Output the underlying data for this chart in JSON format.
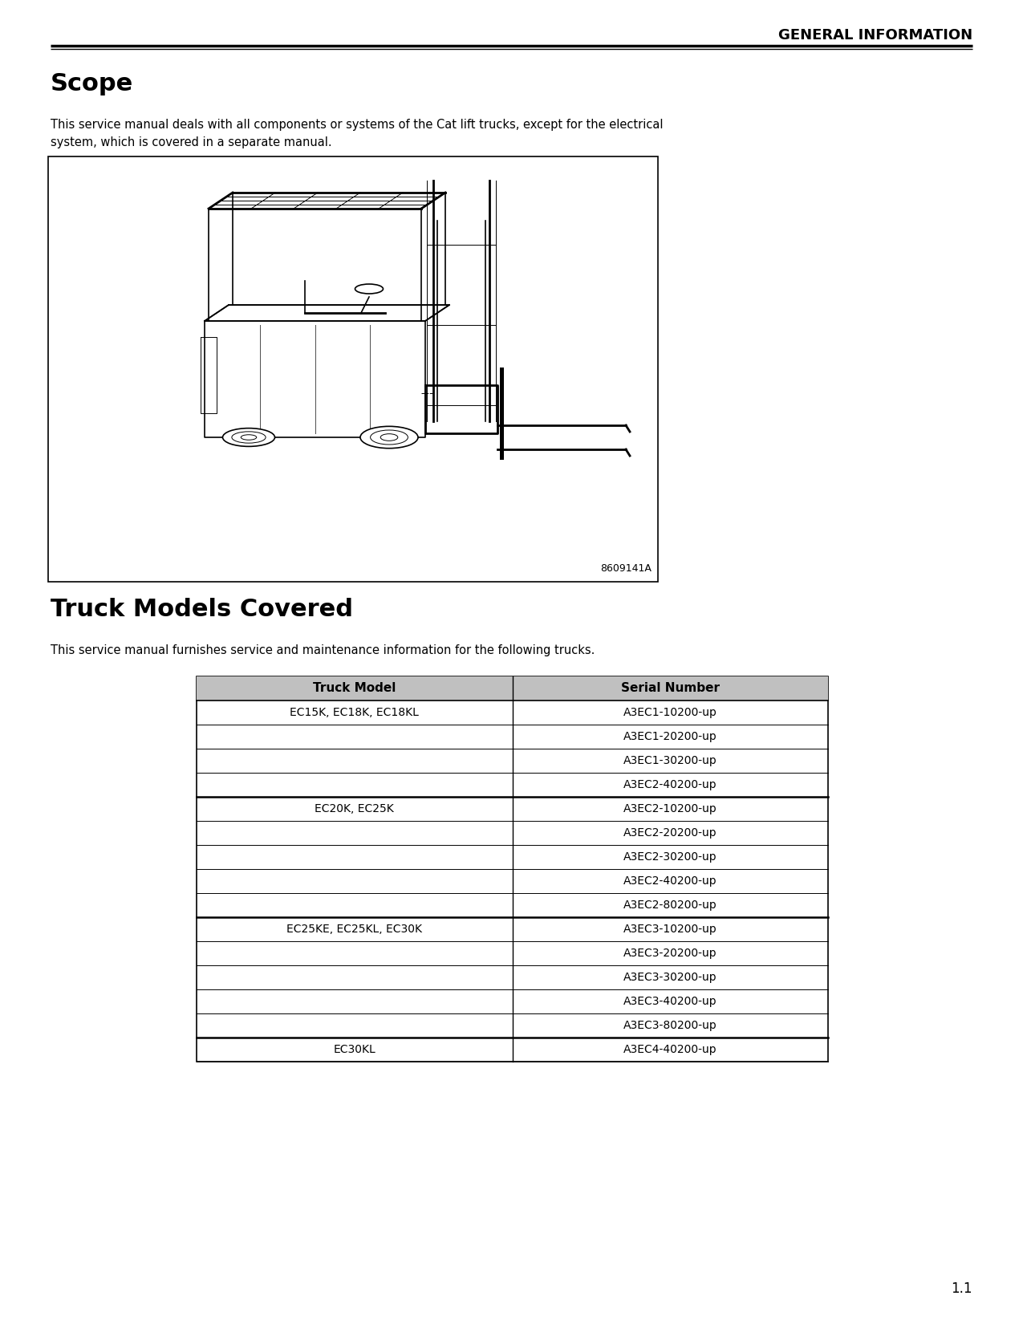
{
  "bg_color": "#ffffff",
  "header_text": "GENERAL INFORMATION",
  "scope_title": "Scope",
  "scope_line1": "This service manual deals with all components or systems of the Cat lift trucks, except for the electrical",
  "scope_line2": "system, which is covered in a separate manual.",
  "forklift_label": "8609141A",
  "truck_section_title": "Truck Models Covered",
  "truck_section_body": "This service manual furnishes service and maintenance information for the following trucks.",
  "table_header": [
    "Truck Model",
    "Serial Number"
  ],
  "table_rows": [
    [
      "EC15K, EC18K, EC18KL",
      "A3EC1-10200-up"
    ],
    [
      "",
      "A3EC1-20200-up"
    ],
    [
      "",
      "A3EC1-30200-up"
    ],
    [
      "",
      "A3EC2-40200-up"
    ],
    [
      "EC20K, EC25K",
      "A3EC2-10200-up"
    ],
    [
      "",
      "A3EC2-20200-up"
    ],
    [
      "",
      "A3EC2-30200-up"
    ],
    [
      "",
      "A3EC2-40200-up"
    ],
    [
      "",
      "A3EC2-80200-up"
    ],
    [
      "EC25KE, EC25KL, EC30K",
      "A3EC3-10200-up"
    ],
    [
      "",
      "A3EC3-20200-up"
    ],
    [
      "",
      "A3EC3-30200-up"
    ],
    [
      "",
      "A3EC3-40200-up"
    ],
    [
      "",
      "A3EC3-80200-up"
    ],
    [
      "EC30KL",
      "A3EC4-40200-up"
    ]
  ],
  "group_starts": [
    0,
    4,
    9,
    14
  ],
  "page_number": "1.1",
  "text_color": "#000000",
  "table_header_bg": "#c0c0c0",
  "group_divider_color": "#888888"
}
